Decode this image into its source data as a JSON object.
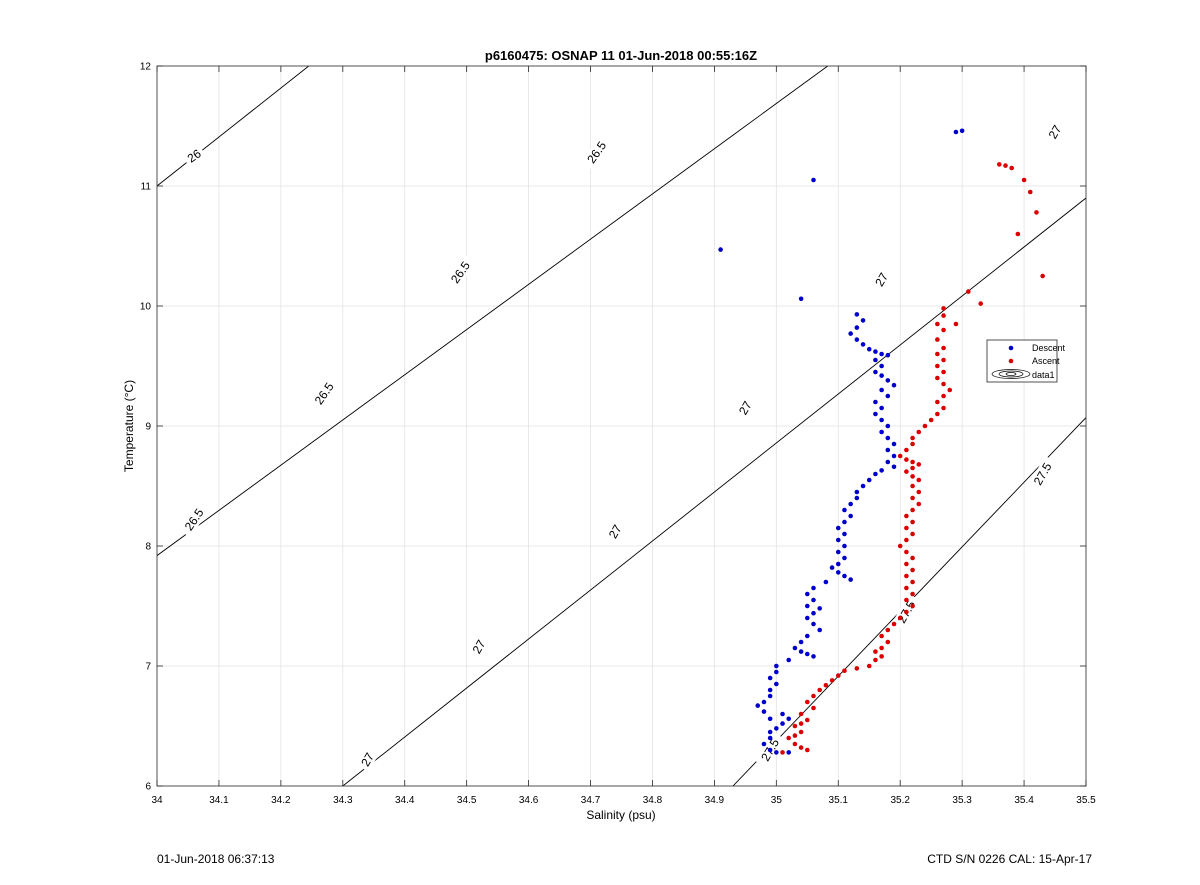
{
  "chart_data": {
    "type": "scatter",
    "title": "p6160475: OSNAP 11 01-Jun-2018 00:55:16Z",
    "xlabel": "Salinity (psu)",
    "ylabel": "Temperature (°C)",
    "xlim": [
      34,
      35.5
    ],
    "ylim": [
      6,
      12
    ],
    "xticks": [
      "34",
      "34.1",
      "34.2",
      "34.3",
      "34.4",
      "34.5",
      "34.6",
      "34.7",
      "34.8",
      "34.9",
      "35",
      "35.1",
      "35.2",
      "35.3",
      "35.4",
      "35.5"
    ],
    "yticks": [
      "6",
      "7",
      "8",
      "9",
      "10",
      "11",
      "12"
    ],
    "grid": true,
    "legend_position": "right",
    "legend": [
      "Descent",
      "Ascent",
      "data1"
    ],
    "colors": {
      "descent": "#0000cc",
      "ascent": "#dd0000",
      "contour": "#000000",
      "grid": "#e3e3e3"
    },
    "contours": [
      {
        "label": "26",
        "points": [
          [
            34.0,
            11.0
          ],
          [
            34.245,
            12.0
          ]
        ]
      },
      {
        "label": "26.5",
        "points": [
          [
            34.0,
            7.92
          ],
          [
            35.083,
            12.0
          ]
        ]
      },
      {
        "label": "27",
        "points": [
          [
            34.3,
            6.0
          ],
          [
            35.5,
            10.9
          ]
        ]
      },
      {
        "label": "27.5",
        "points": [
          [
            34.93,
            6.0
          ],
          [
            35.5,
            9.07
          ]
        ]
      }
    ],
    "contour_labels": [
      {
        "text": "26",
        "x": 34.06,
        "y": 11.25,
        "angle": -35
      },
      {
        "text": "26.5",
        "x": 34.06,
        "y": 8.22,
        "angle": -55
      },
      {
        "text": "26.5",
        "x": 34.27,
        "y": 9.27,
        "angle": -55
      },
      {
        "text": "26.5",
        "x": 34.49,
        "y": 10.28,
        "angle": -55
      },
      {
        "text": "26.5",
        "x": 34.71,
        "y": 11.28,
        "angle": -55
      },
      {
        "text": "27",
        "x": 34.34,
        "y": 6.22,
        "angle": -60
      },
      {
        "text": "27",
        "x": 34.52,
        "y": 7.16,
        "angle": -60
      },
      {
        "text": "27",
        "x": 34.74,
        "y": 8.12,
        "angle": -60
      },
      {
        "text": "27",
        "x": 34.95,
        "y": 9.15,
        "angle": -60
      },
      {
        "text": "27",
        "x": 35.17,
        "y": 10.22,
        "angle": -60
      },
      {
        "text": "27",
        "x": 35.45,
        "y": 11.45,
        "angle": -60
      },
      {
        "text": "27.5",
        "x": 34.99,
        "y": 6.3,
        "angle": -60
      },
      {
        "text": "27.5",
        "x": 35.21,
        "y": 7.45,
        "angle": -60
      },
      {
        "text": "27.5",
        "x": 35.43,
        "y": 8.6,
        "angle": -60
      }
    ],
    "series": [
      {
        "name": "Descent",
        "points": [
          [
            35.29,
            11.45
          ],
          [
            35.3,
            11.46
          ],
          [
            35.06,
            11.05
          ],
          [
            34.91,
            10.47
          ],
          [
            35.04,
            10.06
          ],
          [
            35.13,
            9.93
          ],
          [
            35.14,
            9.88
          ],
          [
            35.13,
            9.82
          ],
          [
            35.12,
            9.77
          ],
          [
            35.13,
            9.72
          ],
          [
            35.14,
            9.68
          ],
          [
            35.15,
            9.64
          ],
          [
            35.16,
            9.62
          ],
          [
            35.17,
            9.6
          ],
          [
            35.18,
            9.59
          ],
          [
            35.16,
            9.55
          ],
          [
            35.17,
            9.5
          ],
          [
            35.16,
            9.45
          ],
          [
            35.17,
            9.42
          ],
          [
            35.18,
            9.38
          ],
          [
            35.19,
            9.34
          ],
          [
            35.17,
            9.3
          ],
          [
            35.18,
            9.25
          ],
          [
            35.16,
            9.2
          ],
          [
            35.17,
            9.15
          ],
          [
            35.16,
            9.1
          ],
          [
            35.17,
            9.05
          ],
          [
            35.18,
            9.0
          ],
          [
            35.17,
            8.95
          ],
          [
            35.18,
            8.9
          ],
          [
            35.19,
            8.85
          ],
          [
            35.18,
            8.8
          ],
          [
            35.19,
            8.75
          ],
          [
            35.18,
            8.7
          ],
          [
            35.19,
            8.66
          ],
          [
            35.17,
            8.63
          ],
          [
            35.16,
            8.6
          ],
          [
            35.15,
            8.55
          ],
          [
            35.14,
            8.5
          ],
          [
            35.13,
            8.45
          ],
          [
            35.13,
            8.4
          ],
          [
            35.12,
            8.35
          ],
          [
            35.11,
            8.3
          ],
          [
            35.12,
            8.25
          ],
          [
            35.11,
            8.2
          ],
          [
            35.1,
            8.15
          ],
          [
            35.11,
            8.1
          ],
          [
            35.1,
            8.05
          ],
          [
            35.11,
            8.0
          ],
          [
            35.1,
            7.95
          ],
          [
            35.11,
            7.9
          ],
          [
            35.1,
            7.85
          ],
          [
            35.09,
            7.82
          ],
          [
            35.1,
            7.78
          ],
          [
            35.11,
            7.75
          ],
          [
            35.12,
            7.72
          ],
          [
            35.08,
            7.7
          ],
          [
            35.06,
            7.65
          ],
          [
            35.05,
            7.6
          ],
          [
            35.06,
            7.55
          ],
          [
            35.05,
            7.5
          ],
          [
            35.07,
            7.48
          ],
          [
            35.06,
            7.44
          ],
          [
            35.05,
            7.4
          ],
          [
            35.06,
            7.35
          ],
          [
            35.07,
            7.3
          ],
          [
            35.05,
            7.25
          ],
          [
            35.04,
            7.2
          ],
          [
            35.03,
            7.15
          ],
          [
            35.04,
            7.12
          ],
          [
            35.05,
            7.1
          ],
          [
            35.06,
            7.08
          ],
          [
            35.02,
            7.05
          ],
          [
            35.0,
            7.0
          ],
          [
            35.0,
            6.95
          ],
          [
            34.99,
            6.9
          ],
          [
            35.0,
            6.85
          ],
          [
            34.99,
            6.8
          ],
          [
            34.99,
            6.75
          ],
          [
            34.98,
            6.7
          ],
          [
            34.97,
            6.67
          ],
          [
            34.98,
            6.62
          ],
          [
            35.01,
            6.6
          ],
          [
            34.99,
            6.56
          ],
          [
            35.02,
            6.56
          ],
          [
            35.01,
            6.52
          ],
          [
            35.0,
            6.48
          ],
          [
            34.99,
            6.45
          ],
          [
            34.99,
            6.4
          ],
          [
            34.98,
            6.35
          ],
          [
            34.99,
            6.3
          ],
          [
            35.0,
            6.28
          ],
          [
            35.02,
            6.28
          ]
        ]
      },
      {
        "name": "Ascent",
        "points": [
          [
            35.36,
            11.18
          ],
          [
            35.37,
            11.17
          ],
          [
            35.38,
            11.15
          ],
          [
            35.4,
            11.05
          ],
          [
            35.41,
            10.95
          ],
          [
            35.42,
            10.78
          ],
          [
            35.39,
            10.6
          ],
          [
            35.43,
            10.25
          ],
          [
            35.31,
            10.12
          ],
          [
            35.33,
            10.02
          ],
          [
            35.27,
            9.98
          ],
          [
            35.27,
            9.92
          ],
          [
            35.26,
            9.85
          ],
          [
            35.29,
            9.85
          ],
          [
            35.27,
            9.8
          ],
          [
            35.26,
            9.72
          ],
          [
            35.27,
            9.65
          ],
          [
            35.26,
            9.6
          ],
          [
            35.27,
            9.55
          ],
          [
            35.26,
            9.5
          ],
          [
            35.27,
            9.45
          ],
          [
            35.26,
            9.4
          ],
          [
            35.27,
            9.35
          ],
          [
            35.28,
            9.3
          ],
          [
            35.27,
            9.25
          ],
          [
            35.26,
            9.2
          ],
          [
            35.27,
            9.15
          ],
          [
            35.26,
            9.1
          ],
          [
            35.25,
            9.05
          ],
          [
            35.24,
            9.0
          ],
          [
            35.23,
            8.95
          ],
          [
            35.22,
            8.9
          ],
          [
            35.22,
            8.85
          ],
          [
            35.21,
            8.8
          ],
          [
            35.2,
            8.75
          ],
          [
            35.21,
            8.72
          ],
          [
            35.22,
            8.7
          ],
          [
            35.23,
            8.68
          ],
          [
            35.22,
            8.65
          ],
          [
            35.21,
            8.62
          ],
          [
            35.22,
            8.58
          ],
          [
            35.23,
            8.55
          ],
          [
            35.22,
            8.5
          ],
          [
            35.23,
            8.45
          ],
          [
            35.22,
            8.4
          ],
          [
            35.23,
            8.35
          ],
          [
            35.22,
            8.3
          ],
          [
            35.21,
            8.25
          ],
          [
            35.22,
            8.2
          ],
          [
            35.21,
            8.15
          ],
          [
            35.22,
            8.1
          ],
          [
            35.21,
            8.05
          ],
          [
            35.2,
            8.0
          ],
          [
            35.21,
            7.95
          ],
          [
            35.22,
            7.9
          ],
          [
            35.21,
            7.85
          ],
          [
            35.22,
            7.8
          ],
          [
            35.21,
            7.75
          ],
          [
            35.22,
            7.7
          ],
          [
            35.21,
            7.65
          ],
          [
            35.22,
            7.6
          ],
          [
            35.21,
            7.55
          ],
          [
            35.22,
            7.5
          ],
          [
            35.21,
            7.45
          ],
          [
            35.2,
            7.4
          ],
          [
            35.19,
            7.35
          ],
          [
            35.18,
            7.3
          ],
          [
            35.17,
            7.25
          ],
          [
            35.18,
            7.2
          ],
          [
            35.17,
            7.15
          ],
          [
            35.16,
            7.12
          ],
          [
            35.17,
            7.08
          ],
          [
            35.16,
            7.05
          ],
          [
            35.15,
            7.0
          ],
          [
            35.13,
            6.98
          ],
          [
            35.11,
            6.96
          ],
          [
            35.1,
            6.92
          ],
          [
            35.09,
            6.88
          ],
          [
            35.08,
            6.84
          ],
          [
            35.07,
            6.8
          ],
          [
            35.06,
            6.75
          ],
          [
            35.05,
            6.7
          ],
          [
            35.06,
            6.65
          ],
          [
            35.04,
            6.6
          ],
          [
            35.05,
            6.55
          ],
          [
            35.04,
            6.52
          ],
          [
            35.03,
            6.5
          ],
          [
            35.04,
            6.45
          ],
          [
            35.03,
            6.42
          ],
          [
            35.02,
            6.4
          ],
          [
            35.03,
            6.35
          ],
          [
            35.04,
            6.32
          ],
          [
            35.05,
            6.3
          ],
          [
            35.01,
            6.28
          ]
        ]
      }
    ]
  },
  "footer": {
    "left": "01-Jun-2018 06:37:13",
    "right": "CTD S/N 0226  CAL: 15-Apr-17"
  }
}
